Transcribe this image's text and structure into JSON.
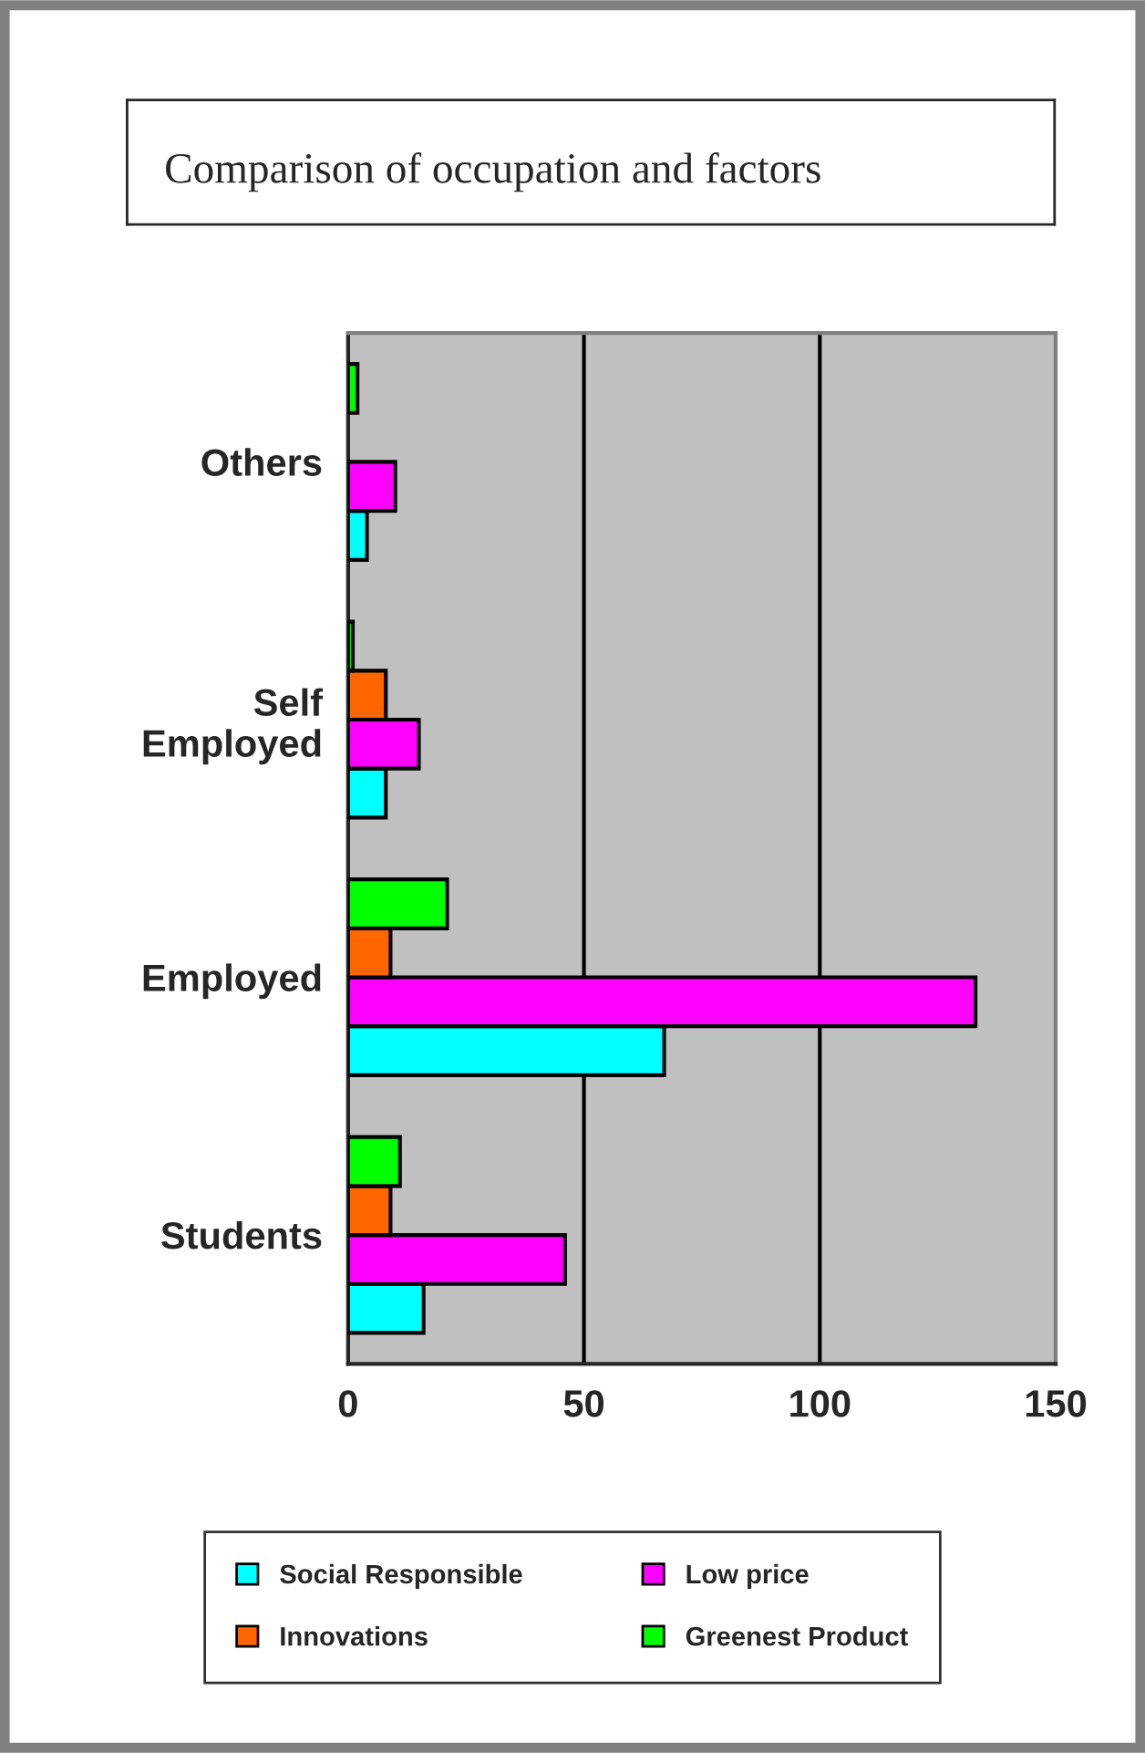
{
  "chart_data": {
    "type": "bar",
    "orientation": "horizontal",
    "title": "Comparison of occupation and factors",
    "categories": [
      "Others",
      "Self\nEmployed",
      "Employed",
      "Students"
    ],
    "series": [
      {
        "name": "Social Responsible",
        "color": "#00ffff",
        "values": [
          4,
          8,
          67,
          16
        ]
      },
      {
        "name": "Low price",
        "color": "#ff00ff",
        "values": [
          10,
          15,
          133,
          46
        ]
      },
      {
        "name": "Innovations",
        "color": "#ff6600",
        "values": [
          null,
          8,
          9,
          9
        ]
      },
      {
        "name": "Greenest Product",
        "color": "#00ff00",
        "values": [
          2,
          1,
          21,
          11
        ]
      }
    ],
    "xlim": [
      0,
      150
    ],
    "xticks": [
      0,
      50,
      100,
      150
    ],
    "grid": "x",
    "legend": "bottom"
  }
}
